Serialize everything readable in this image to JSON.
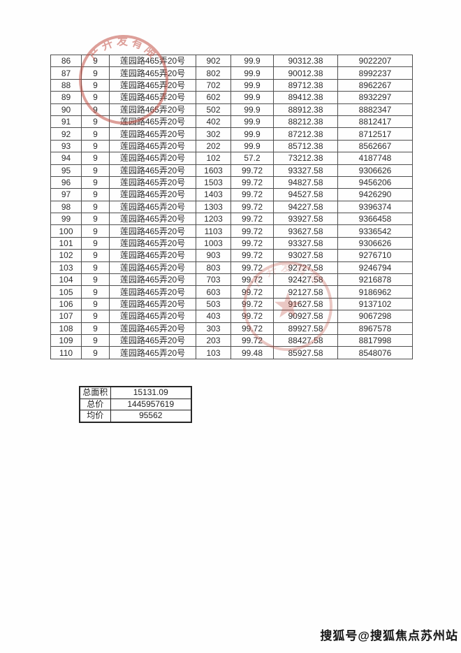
{
  "page": {
    "watermark": "搜狐号@搜狐焦点苏州站"
  },
  "colors": {
    "stamp_red": "#bf4a3e",
    "table_border": "#4f4f4f",
    "summary_border": "#262626",
    "text": "#2c2c2c"
  },
  "main_table": {
    "rows": [
      [
        "86",
        "9",
        "莲园路465弄20号",
        "902",
        "99.9",
        "90312.38",
        "9022207"
      ],
      [
        "87",
        "9",
        "莲园路465弄20号",
        "802",
        "99.9",
        "90012.38",
        "8992237"
      ],
      [
        "88",
        "9",
        "莲园路465弄20号",
        "702",
        "99.9",
        "89712.38",
        "8962267"
      ],
      [
        "89",
        "9",
        "莲园路465弄20号",
        "602",
        "99.9",
        "89412.38",
        "8932297"
      ],
      [
        "90",
        "9",
        "莲园路465弄20号",
        "502",
        "99.9",
        "88912.38",
        "8882347"
      ],
      [
        "91",
        "9",
        "莲园路465弄20号",
        "402",
        "99.9",
        "88212.38",
        "8812417"
      ],
      [
        "92",
        "9",
        "莲园路465弄20号",
        "302",
        "99.9",
        "87212.38",
        "8712517"
      ],
      [
        "93",
        "9",
        "莲园路465弄20号",
        "202",
        "99.9",
        "85712.38",
        "8562667"
      ],
      [
        "94",
        "9",
        "莲园路465弄20号",
        "102",
        "57.2",
        "73212.38",
        "4187748"
      ],
      [
        "95",
        "9",
        "莲园路465弄20号",
        "1603",
        "99.72",
        "93327.58",
        "9306626"
      ],
      [
        "96",
        "9",
        "莲园路465弄20号",
        "1503",
        "99.72",
        "94827.58",
        "9456206"
      ],
      [
        "97",
        "9",
        "莲园路465弄20号",
        "1403",
        "99.72",
        "94527.58",
        "9426290"
      ],
      [
        "98",
        "9",
        "莲园路465弄20号",
        "1303",
        "99.72",
        "94227.58",
        "9396374"
      ],
      [
        "99",
        "9",
        "莲园路465弄20号",
        "1203",
        "99.72",
        "93927.58",
        "9366458"
      ],
      [
        "100",
        "9",
        "莲园路465弄20号",
        "1103",
        "99.72",
        "93627.58",
        "9336542"
      ],
      [
        "101",
        "9",
        "莲园路465弄20号",
        "1003",
        "99.72",
        "93327.58",
        "9306626"
      ],
      [
        "102",
        "9",
        "莲园路465弄20号",
        "903",
        "99.72",
        "93027.58",
        "9276710"
      ],
      [
        "103",
        "9",
        "莲园路465弄20号",
        "803",
        "99.72",
        "92727.58",
        "9246794"
      ],
      [
        "104",
        "9",
        "莲园路465弄20号",
        "703",
        "99.72",
        "92427.58",
        "9216878"
      ],
      [
        "105",
        "9",
        "莲园路465弄20号",
        "603",
        "99.72",
        "92127.58",
        "9186962"
      ],
      [
        "106",
        "9",
        "莲园路465弄20号",
        "503",
        "99.72",
        "91627.58",
        "9137102"
      ],
      [
        "107",
        "9",
        "莲园路465弄20号",
        "403",
        "99.72",
        "90927.58",
        "9067298"
      ],
      [
        "108",
        "9",
        "莲园路465弄20号",
        "303",
        "99.72",
        "89927.58",
        "8967578"
      ],
      [
        "109",
        "9",
        "莲园路465弄20号",
        "203",
        "99.72",
        "88427.58",
        "8817998"
      ],
      [
        "110",
        "9",
        "莲园路465弄20号",
        "103",
        "99.48",
        "85927.58",
        "8548076"
      ]
    ]
  },
  "summary_table": {
    "rows": [
      [
        "总面积",
        "15131.09"
      ],
      [
        "总价",
        "1445957619"
      ],
      [
        "均价",
        "95562"
      ]
    ]
  },
  "stamps": [
    {
      "arc_text": "产开发有限"
    },
    {
      "arc_text": "产开发有限"
    }
  ]
}
